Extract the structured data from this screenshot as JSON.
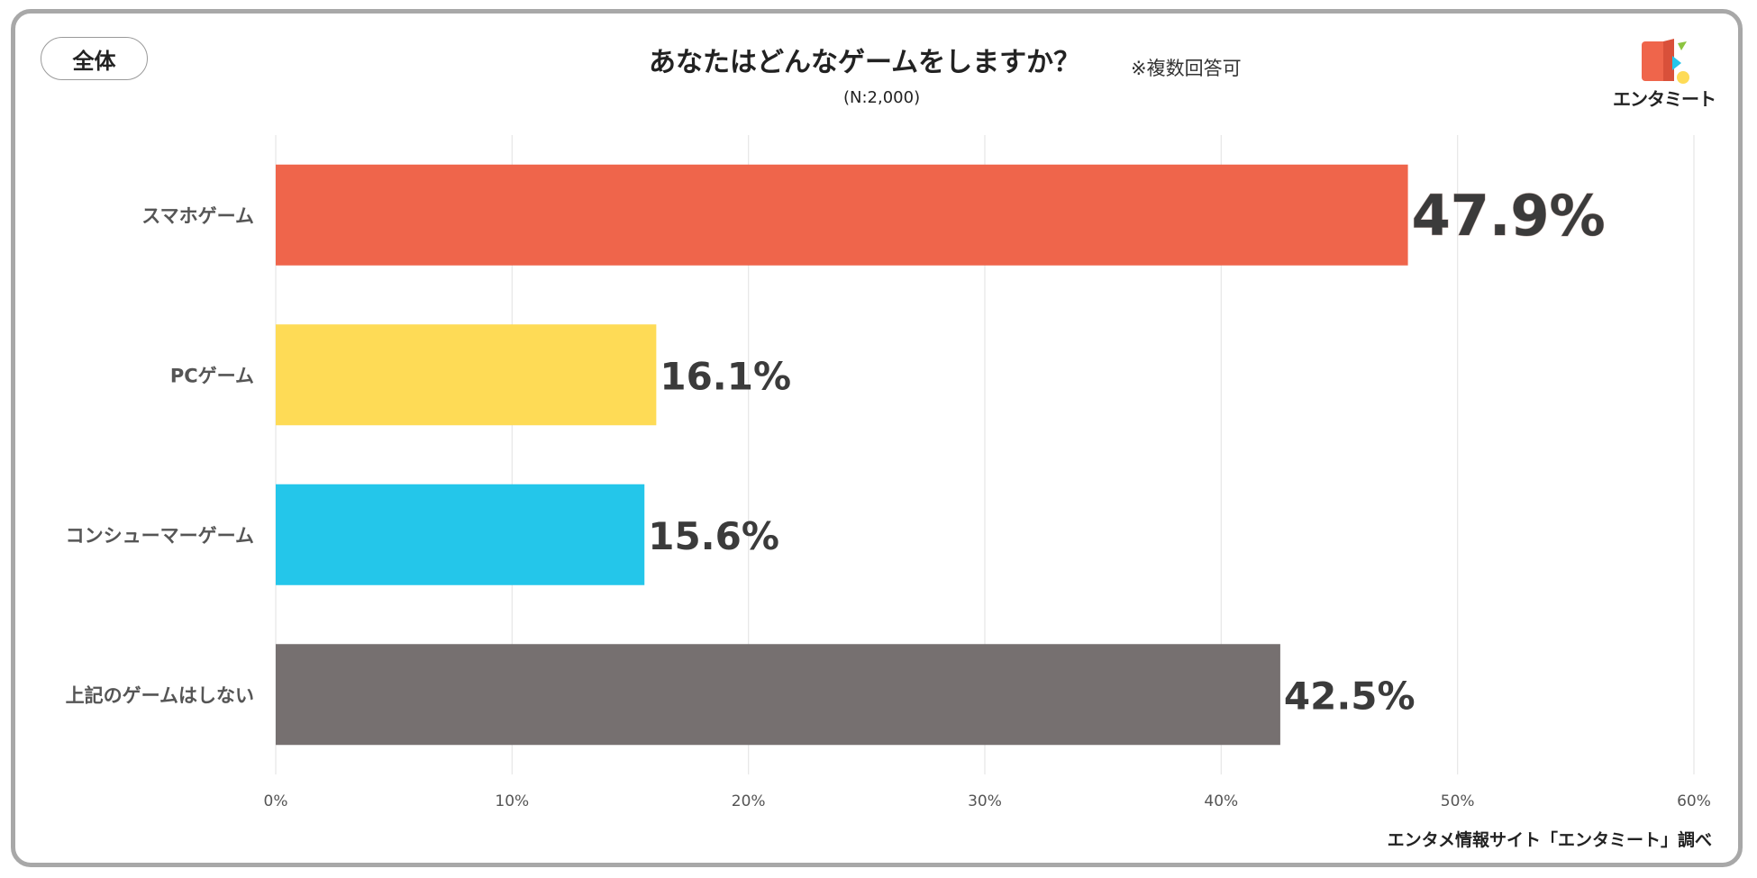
{
  "header": {
    "tag": "全体",
    "title": "あなたはどんなゲームをしますか？",
    "title_note": "※複数回答可",
    "subtitle": "(N:2,000)"
  },
  "logo": {
    "text": "エンタミート"
  },
  "footer": {
    "source": "エンタメ情報サイト「エンタミート」調べ"
  },
  "chart_data": {
    "type": "bar",
    "orientation": "horizontal",
    "title": "あなたはどんなゲームをしますか？",
    "categories": [
      "スマホゲーム",
      "PCゲーム",
      "コンシューマーゲーム",
      "上記のゲームはしない"
    ],
    "values": [
      47.9,
      16.1,
      15.6,
      42.5
    ],
    "value_labels": [
      "47.9%",
      "16.1%",
      "15.6%",
      "42.5%"
    ],
    "colors": [
      "#ef654b",
      "#fedb56",
      "#24c6ea",
      "#767070"
    ],
    "highlight_label_color": "#ef654b",
    "xlim": [
      0,
      60
    ],
    "xticks": [
      "0%",
      "10%",
      "20%",
      "30%",
      "40%",
      "50%",
      "60%"
    ],
    "xlabel": "",
    "ylabel": "",
    "grid": true,
    "legend": "none"
  }
}
